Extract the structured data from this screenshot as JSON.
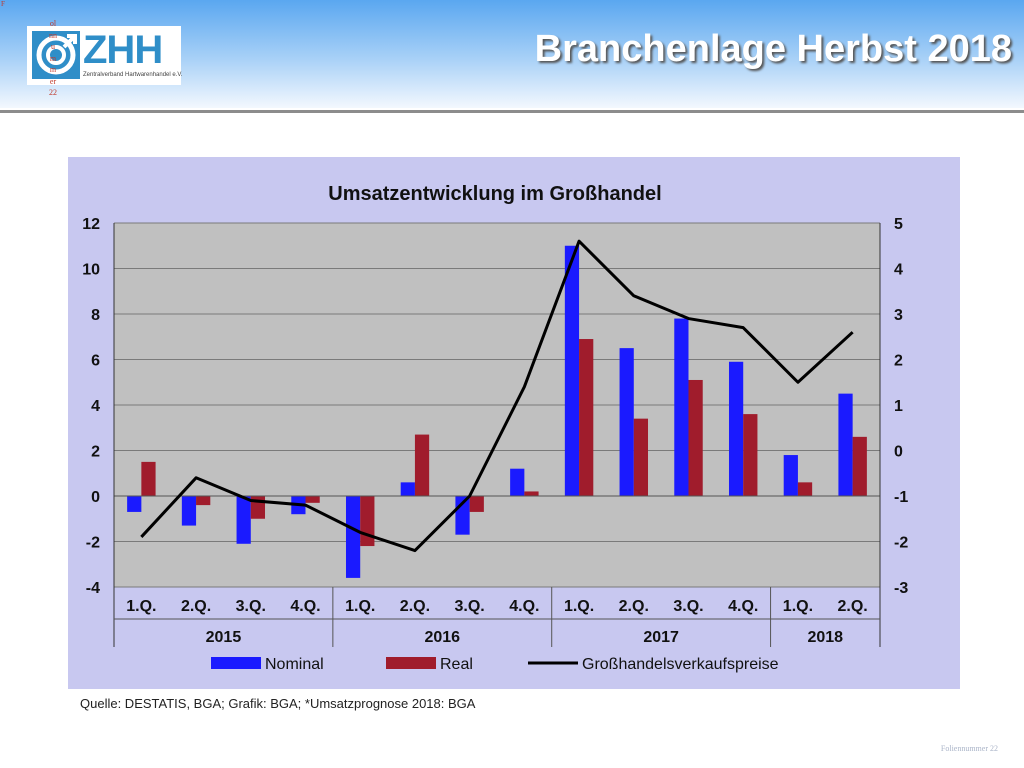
{
  "header": {
    "title": "Branchenlage Herbst 2018",
    "logo_text": "ZHH",
    "logo_subtext": "Zentralverband Hartwarenhandel e.V.",
    "vertical_text": "olnnummer22",
    "corner_text": "F"
  },
  "footer": {
    "source": "Quelle: DESTATIS, BGA; Grafik: BGA; *Umsatzprognose 2018: BGA",
    "slide_number": "Foliennummer 22"
  },
  "colors": {
    "nominal": "#1a1aff",
    "real": "#a01c2c",
    "line": "#000000",
    "plot_bg": "#c0c0c0",
    "panel_bg": "#c8c8f0"
  },
  "chart_data": {
    "type": "bar",
    "title": "Umsatzentwicklung im Großhandel",
    "categories": [
      "1.Q.",
      "2.Q.",
      "3.Q.",
      "4.Q.",
      "1.Q.",
      "2.Q.",
      "3.Q.",
      "4.Q.",
      "1.Q.",
      "2.Q.",
      "3.Q.",
      "4.Q.",
      "1.Q.",
      "2.Q."
    ],
    "year_groups": [
      {
        "label": "2015",
        "count": 4
      },
      {
        "label": "2016",
        "count": 4
      },
      {
        "label": "2017",
        "count": 4
      },
      {
        "label": "2018",
        "count": 2
      }
    ],
    "series": [
      {
        "name": "Nominal",
        "type": "bar",
        "axis": "left",
        "values": [
          -0.7,
          -1.3,
          -2.1,
          -0.8,
          -3.6,
          0.6,
          -1.7,
          1.2,
          11.0,
          6.5,
          7.8,
          5.9,
          1.8,
          4.5
        ]
      },
      {
        "name": "Real",
        "type": "bar",
        "axis": "left",
        "values": [
          1.5,
          -0.4,
          -1.0,
          -0.3,
          -2.2,
          2.7,
          -0.7,
          0.2,
          6.9,
          3.4,
          5.1,
          3.6,
          0.6,
          2.6
        ]
      },
      {
        "name": "Großhandelsverkaufspreise",
        "type": "line",
        "axis": "right",
        "values": [
          -1.9,
          -0.6,
          -1.1,
          -1.2,
          -1.8,
          -2.2,
          -1.0,
          1.4,
          4.6,
          3.4,
          2.9,
          2.7,
          1.5,
          2.6
        ]
      }
    ],
    "ylim_left": [
      -4,
      12
    ],
    "yticks_left": [
      -4,
      -2,
      0,
      2,
      4,
      6,
      8,
      10,
      12
    ],
    "ylim_right": [
      -3,
      5
    ],
    "yticks_right": [
      -3,
      -2,
      -1,
      0,
      1,
      2,
      3,
      4,
      5
    ],
    "grid": true,
    "legend_position": "bottom"
  }
}
